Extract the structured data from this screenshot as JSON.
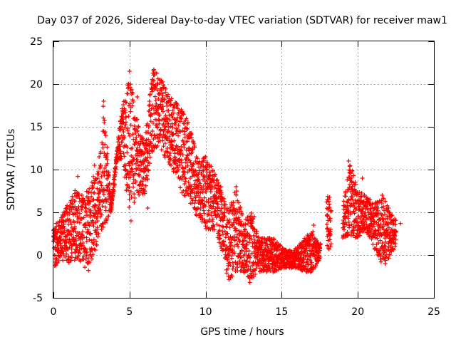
{
  "chart_data": {
    "type": "scatter",
    "marker": "plus",
    "title": "Day 037 of 2026, Sidereal Day-to-day VTEC variation (SDTVAR) for receiver maw1",
    "xlabel": "GPS time / hours",
    "ylabel": "SDTVAR / TECUs",
    "xlim": [
      0,
      25
    ],
    "ylim": [
      -5,
      25
    ],
    "x_ticks": [
      "0",
      "5",
      "10",
      "15",
      "20",
      "25"
    ],
    "y_ticks": [
      "-5",
      "0",
      "5",
      "10",
      "15",
      "20",
      "25"
    ],
    "grid": true,
    "series": [
      {
        "name": "SDTVAR",
        "color": "#ff0000",
        "envelope": [
          {
            "x": 0.0,
            "lo": -1.5,
            "hi": 3.0
          },
          {
            "x": 0.5,
            "lo": -0.5,
            "hi": 5.0
          },
          {
            "x": 1.0,
            "lo": -1.0,
            "hi": 6.0
          },
          {
            "x": 1.5,
            "lo": -0.5,
            "hi": 8.0
          },
          {
            "x": 2.0,
            "lo": -1.5,
            "hi": 7.0
          },
          {
            "x": 2.5,
            "lo": -1.0,
            "hi": 9.0
          },
          {
            "x": 3.0,
            "lo": 2.0,
            "hi": 10.0
          },
          {
            "x": 3.3,
            "lo": 3.0,
            "hi": 18.0
          },
          {
            "x": 3.8,
            "lo": 5.0,
            "hi": 6.0
          },
          {
            "x": 4.2,
            "lo": 11.0,
            "hi": 13.0
          },
          {
            "x": 4.5,
            "lo": 11.0,
            "hi": 17.0
          },
          {
            "x": 5.0,
            "lo": 4.0,
            "hi": 21.5
          },
          {
            "x": 5.5,
            "lo": 7.0,
            "hi": 16.0
          },
          {
            "x": 6.0,
            "lo": 7.0,
            "hi": 13.0
          },
          {
            "x": 6.5,
            "lo": 12.0,
            "hi": 22.0
          },
          {
            "x": 7.0,
            "lo": 12.0,
            "hi": 21.0
          },
          {
            "x": 7.5,
            "lo": 11.0,
            "hi": 19.0
          },
          {
            "x": 8.0,
            "lo": 9.0,
            "hi": 18.0
          },
          {
            "x": 8.5,
            "lo": 7.0,
            "hi": 17.0
          },
          {
            "x": 9.0,
            "lo": 6.0,
            "hi": 15.0
          },
          {
            "x": 9.5,
            "lo": 4.0,
            "hi": 11.0
          },
          {
            "x": 10.0,
            "lo": 3.0,
            "hi": 11.5
          },
          {
            "x": 10.5,
            "lo": 3.0,
            "hi": 10.0
          },
          {
            "x": 11.0,
            "lo": 1.0,
            "hi": 8.0
          },
          {
            "x": 11.5,
            "lo": -3.0,
            "hi": 5.0
          },
          {
            "x": 12.0,
            "lo": -2.0,
            "hi": 8.0
          },
          {
            "x": 12.5,
            "lo": -2.0,
            "hi": 4.0
          },
          {
            "x": 13.0,
            "lo": -3.0,
            "hi": 5.0
          },
          {
            "x": 13.5,
            "lo": -2.0,
            "hi": 2.0
          },
          {
            "x": 14.0,
            "lo": -2.0,
            "hi": 2.0
          },
          {
            "x": 14.5,
            "lo": -2.0,
            "hi": 2.0
          },
          {
            "x": 15.0,
            "lo": -1.5,
            "hi": 1.0
          },
          {
            "x": 15.5,
            "lo": -1.5,
            "hi": 0.5
          },
          {
            "x": 16.0,
            "lo": -1.5,
            "hi": 1.0
          },
          {
            "x": 16.5,
            "lo": -2.0,
            "hi": 2.0
          },
          {
            "x": 17.0,
            "lo": -2.0,
            "hi": 3.0
          },
          {
            "x": 17.5,
            "lo": -0.5,
            "hi": 1.0
          },
          {
            "x": 18.0,
            "lo": 0.5,
            "hi": 7.0
          },
          {
            "x": 19.0,
            "lo": 2.0,
            "hi": 6.0
          },
          {
            "x": 19.5,
            "lo": 2.0,
            "hi": 11.0
          },
          {
            "x": 20.0,
            "lo": 2.0,
            "hi": 8.0
          },
          {
            "x": 20.5,
            "lo": 3.0,
            "hi": 7.0
          },
          {
            "x": 21.0,
            "lo": 1.0,
            "hi": 6.0
          },
          {
            "x": 21.5,
            "lo": -1.0,
            "hi": 7.0
          },
          {
            "x": 22.0,
            "lo": -0.5,
            "hi": 6.0
          },
          {
            "x": 22.5,
            "lo": 1.0,
            "hi": 4.0
          }
        ],
        "sample_points": [
          [
            0.1,
            2.7
          ],
          [
            0.15,
            -1.2
          ],
          [
            0.3,
            0.5
          ],
          [
            0.6,
            4.5
          ],
          [
            0.9,
            5.8
          ],
          [
            1.4,
            7.2
          ],
          [
            1.6,
            9.2
          ],
          [
            2.2,
            6.8
          ],
          [
            2.3,
            -1.8
          ],
          [
            2.7,
            10.5
          ],
          [
            3.0,
            11.5
          ],
          [
            3.3,
            18.0
          ],
          [
            3.8,
            5.5
          ],
          [
            4.3,
            12.0
          ],
          [
            4.6,
            16.8
          ],
          [
            4.9,
            19.5
          ],
          [
            5.0,
            21.5
          ],
          [
            5.1,
            4.0
          ],
          [
            5.5,
            18.5
          ],
          [
            6.0,
            7.5
          ],
          [
            6.2,
            5.5
          ],
          [
            6.5,
            14.5
          ],
          [
            6.6,
            21.7
          ],
          [
            7.0,
            20.5
          ],
          [
            7.6,
            18.0
          ],
          [
            8.2,
            16.5
          ],
          [
            8.6,
            7.0
          ],
          [
            9.0,
            14.0
          ],
          [
            9.5,
            5.5
          ],
          [
            10.0,
            11.5
          ],
          [
            10.5,
            3.5
          ],
          [
            11.0,
            8.0
          ],
          [
            11.4,
            2.5
          ],
          [
            11.5,
            -2.5
          ],
          [
            12.0,
            8.0
          ],
          [
            12.5,
            -1.0
          ],
          [
            12.9,
            -3.2
          ],
          [
            13.2,
            4.5
          ],
          [
            13.7,
            1.5
          ],
          [
            14.5,
            1.8
          ],
          [
            15.0,
            -0.5
          ],
          [
            15.8,
            0.3
          ],
          [
            16.3,
            -1.0
          ],
          [
            16.9,
            -2.0
          ],
          [
            17.1,
            3.5
          ],
          [
            18.0,
            6.5
          ],
          [
            18.1,
            1.0
          ],
          [
            19.4,
            11.0
          ],
          [
            19.6,
            8.5
          ],
          [
            20.1,
            3.0
          ],
          [
            20.3,
            9.0
          ],
          [
            20.8,
            6.5
          ],
          [
            21.3,
            5.0
          ],
          [
            21.6,
            7.0
          ],
          [
            21.8,
            -1.0
          ],
          [
            22.1,
            5.0
          ],
          [
            22.4,
            2.0
          ],
          [
            22.8,
            3.7
          ]
        ]
      }
    ]
  }
}
